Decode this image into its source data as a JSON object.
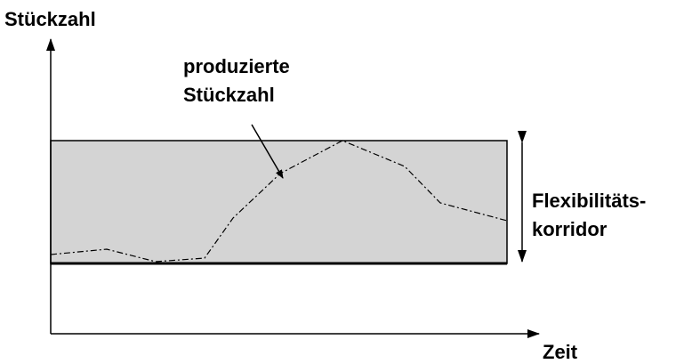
{
  "axes": {
    "y_label": "Stückzahl",
    "x_label": "Zeit"
  },
  "annotations": {
    "produced": [
      "produzierte",
      "Stückzahl"
    ],
    "corridor": [
      "Flexibilitäts-",
      "korridor"
    ]
  }
}
